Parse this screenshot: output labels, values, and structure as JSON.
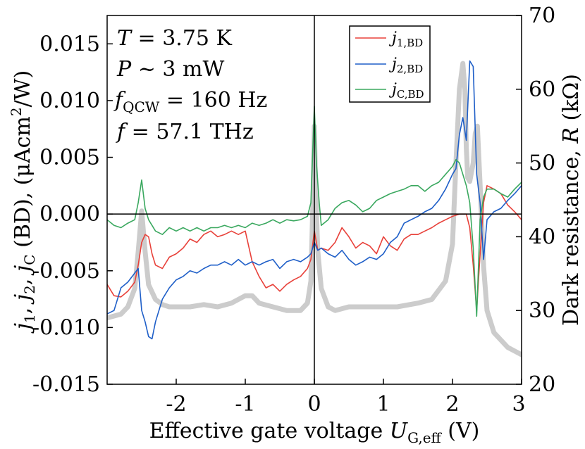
{
  "chart_data": {
    "type": "line",
    "xlabel": {
      "text": "Effective gate voltage ",
      "var": "U",
      "sub": "G,eff",
      "unit": " (V)"
    },
    "ylabel_left": {
      "j1": "j",
      "j1_sub": "1",
      "j2": "j",
      "j2_sub": "2",
      "jc": "j",
      "jc_sub": "C",
      "rest": " (BD), (μAcm",
      "sup": "2",
      "tail": "/W)"
    },
    "ylabel_right": {
      "text": "Dark resistance, ",
      "var": "R",
      "unit": " (kΩ)"
    },
    "xlim": [
      -3.0,
      3.0
    ],
    "ylim_left": [
      -0.015,
      0.0175
    ],
    "ylim_right": [
      20,
      70
    ],
    "x_ticks": [
      {
        "value": -2,
        "label": "-2"
      },
      {
        "value": -1,
        "label": "-1"
      },
      {
        "value": 0,
        "label": "0"
      },
      {
        "value": 1,
        "label": "1"
      },
      {
        "value": 2,
        "label": "2"
      },
      {
        "value": 3,
        "label": "3"
      }
    ],
    "y_left_ticks": [
      {
        "value": 0.015,
        "label": "0.015"
      },
      {
        "value": 0.01,
        "label": "0.010"
      },
      {
        "value": 0.005,
        "label": "0.005"
      },
      {
        "value": 0.0,
        "label": "0.000"
      },
      {
        "value": -0.005,
        "label": "-0.005"
      },
      {
        "value": -0.01,
        "label": "-0.010"
      },
      {
        "value": -0.015,
        "label": "-0.015"
      }
    ],
    "y_right_ticks": [
      {
        "value": 70,
        "label": "70"
      },
      {
        "value": 60,
        "label": "60"
      },
      {
        "value": 50,
        "label": "50"
      },
      {
        "value": 40,
        "label": "40"
      },
      {
        "value": 30,
        "label": "30"
      },
      {
        "value": 20,
        "label": "20"
      }
    ],
    "annotations": [
      {
        "var": "T",
        "sub": "",
        "text": " = 3.75 K"
      },
      {
        "var": "P",
        "sub": "",
        "text": " ~ 3 mW"
      },
      {
        "var": "f",
        "sub": "QCW",
        "text": " = 160 Hz"
      },
      {
        "var": "f",
        "sub": "",
        "text": " = 57.1 THz"
      }
    ],
    "legend_position": "top-right",
    "series": [
      {
        "name": "j",
        "name_sub": "1,BD",
        "color": "#e8413a",
        "axis": "left",
        "x": [
          -3.0,
          -2.9,
          -2.8,
          -2.7,
          -2.6,
          -2.55,
          -2.5,
          -2.45,
          -2.4,
          -2.35,
          -2.3,
          -2.2,
          -2.1,
          -2.0,
          -1.9,
          -1.8,
          -1.7,
          -1.6,
          -1.5,
          -1.4,
          -1.3,
          -1.2,
          -1.1,
          -1.0,
          -0.9,
          -0.8,
          -0.7,
          -0.6,
          -0.5,
          -0.4,
          -0.3,
          -0.2,
          -0.1,
          -0.05,
          0.0,
          0.05,
          0.1,
          0.2,
          0.3,
          0.4,
          0.5,
          0.6,
          0.7,
          0.8,
          0.9,
          1.0,
          1.1,
          1.2,
          1.3,
          1.4,
          1.5,
          1.6,
          1.7,
          1.8,
          1.9,
          2.0,
          2.1,
          2.2,
          2.25,
          2.3,
          2.35,
          2.4,
          2.45,
          2.5,
          2.6,
          2.7,
          2.8,
          2.9,
          3.0
        ],
        "y": [
          -0.0062,
          -0.0072,
          -0.0073,
          -0.0068,
          -0.006,
          -0.0045,
          -0.0025,
          -0.0018,
          -0.002,
          -0.0035,
          -0.0045,
          -0.0048,
          -0.0038,
          -0.0035,
          -0.003,
          -0.0022,
          -0.0025,
          -0.0018,
          -0.0015,
          -0.002,
          -0.0018,
          -0.0015,
          -0.0018,
          -0.0015,
          -0.0042,
          -0.0055,
          -0.0065,
          -0.0062,
          -0.0068,
          -0.0062,
          -0.0058,
          -0.0055,
          -0.0048,
          -0.004,
          -0.0015,
          -0.0032,
          -0.003,
          -0.0032,
          -0.0025,
          -0.0012,
          -0.002,
          -0.003,
          -0.0025,
          -0.0028,
          -0.0035,
          -0.002,
          -0.0028,
          -0.0032,
          -0.0022,
          -0.0018,
          -0.0018,
          -0.0015,
          -0.0012,
          -0.0008,
          -0.0005,
          -0.0002,
          0.0,
          0.0,
          -0.0012,
          -0.0045,
          -0.0085,
          -0.0035,
          0.001,
          0.0025,
          0.0022,
          0.0018,
          0.0008,
          0.0002,
          -0.0005
        ]
      },
      {
        "name": "j",
        "name_sub": "2,BD",
        "color": "#1f5fc8",
        "axis": "left",
        "x": [
          -3.0,
          -2.9,
          -2.8,
          -2.7,
          -2.6,
          -2.55,
          -2.5,
          -2.45,
          -2.4,
          -2.35,
          -2.3,
          -2.2,
          -2.1,
          -2.0,
          -1.9,
          -1.8,
          -1.7,
          -1.6,
          -1.5,
          -1.4,
          -1.3,
          -1.2,
          -1.1,
          -1.0,
          -0.9,
          -0.8,
          -0.7,
          -0.6,
          -0.5,
          -0.4,
          -0.3,
          -0.2,
          -0.1,
          -0.05,
          0.0,
          0.05,
          0.1,
          0.2,
          0.3,
          0.4,
          0.5,
          0.6,
          0.7,
          0.8,
          0.9,
          1.0,
          1.1,
          1.2,
          1.3,
          1.4,
          1.5,
          1.6,
          1.7,
          1.8,
          1.9,
          2.0,
          2.05,
          2.1,
          2.15,
          2.2,
          2.25,
          2.3,
          2.35,
          2.4,
          2.45,
          2.5,
          2.6,
          2.7,
          2.8,
          2.9,
          3.0
        ],
        "y": [
          -0.0088,
          -0.0085,
          -0.0065,
          -0.006,
          -0.0052,
          -0.0048,
          -0.0085,
          -0.0095,
          -0.0108,
          -0.011,
          -0.0095,
          -0.0075,
          -0.0065,
          -0.0058,
          -0.0055,
          -0.005,
          -0.0052,
          -0.0048,
          -0.0045,
          -0.0045,
          -0.0042,
          -0.0045,
          -0.004,
          -0.0045,
          -0.0042,
          -0.0045,
          -0.0042,
          -0.004,
          -0.0048,
          -0.0042,
          -0.004,
          -0.0042,
          -0.0038,
          -0.0035,
          -0.0025,
          -0.0032,
          -0.003,
          -0.0035,
          -0.0038,
          -0.0032,
          -0.004,
          -0.0045,
          -0.0042,
          -0.0038,
          -0.004,
          -0.0035,
          -0.0025,
          -0.002,
          -0.0008,
          -0.0005,
          -0.0002,
          0.0002,
          0.0005,
          0.0012,
          0.0022,
          0.0035,
          0.004,
          0.007,
          0.0085,
          0.0065,
          0.0135,
          0.013,
          0.0035,
          0.001,
          -0.004,
          -0.0005,
          0.0002,
          0.0005,
          0.0012,
          0.0018,
          0.0025
        ]
      },
      {
        "name": "j",
        "name_sub": "C,BD",
        "color": "#3aa85f",
        "axis": "left",
        "x": [
          -3.0,
          -2.9,
          -2.8,
          -2.7,
          -2.6,
          -2.55,
          -2.5,
          -2.45,
          -2.4,
          -2.3,
          -2.2,
          -2.1,
          -2.0,
          -1.9,
          -1.8,
          -1.7,
          -1.6,
          -1.5,
          -1.4,
          -1.3,
          -1.2,
          -1.1,
          -1.0,
          -0.9,
          -0.8,
          -0.7,
          -0.6,
          -0.5,
          -0.4,
          -0.3,
          -0.2,
          -0.1,
          -0.05,
          0.0,
          0.03,
          0.07,
          0.1,
          0.2,
          0.3,
          0.4,
          0.5,
          0.6,
          0.7,
          0.8,
          0.9,
          1.0,
          1.1,
          1.2,
          1.3,
          1.4,
          1.5,
          1.6,
          1.7,
          1.8,
          1.9,
          2.0,
          2.05,
          2.1,
          2.15,
          2.2,
          2.25,
          2.3,
          2.35,
          2.4,
          2.45,
          2.5,
          2.6,
          2.7,
          2.8,
          2.9,
          3.0
        ],
        "y": [
          -0.0005,
          -0.001,
          -0.0012,
          -0.0008,
          -0.0005,
          0.001,
          0.003,
          0.0005,
          -0.0005,
          -0.0015,
          -0.0018,
          -0.0012,
          -0.0015,
          -0.0012,
          -0.0015,
          -0.0012,
          -0.0015,
          -0.0012,
          -0.0012,
          -0.001,
          -0.0012,
          -0.001,
          -0.0012,
          -0.0008,
          -0.001,
          -0.0008,
          -0.0005,
          -0.0008,
          -0.0005,
          -0.0006,
          -0.0005,
          -0.0002,
          0.001,
          0.0095,
          0.0045,
          0.001,
          -0.001,
          -0.0005,
          0.0005,
          0.001,
          0.0012,
          0.0008,
          0.0002,
          0.0005,
          0.0012,
          0.0015,
          0.0018,
          0.002,
          0.0022,
          0.0025,
          0.0025,
          0.002,
          0.0025,
          0.0028,
          0.0035,
          0.0042,
          0.0048,
          0.0045,
          0.0035,
          0.0025,
          0.001,
          -0.003,
          -0.009,
          -0.0005,
          0.0015,
          0.0022,
          0.0022,
          0.0018,
          0.0015,
          0.0022,
          0.0028
        ]
      },
      {
        "name": "",
        "name_sub": "",
        "color": "#cccccc",
        "axis": "right",
        "x": [
          -3.0,
          -2.8,
          -2.7,
          -2.6,
          -2.55,
          -2.5,
          -2.45,
          -2.4,
          -2.3,
          -2.2,
          -2.1,
          -2.0,
          -1.8,
          -1.6,
          -1.4,
          -1.2,
          -1.0,
          -0.9,
          -0.8,
          -0.6,
          -0.4,
          -0.2,
          -0.1,
          -0.05,
          -0.02,
          0.0,
          0.02,
          0.05,
          0.1,
          0.2,
          0.3,
          0.5,
          0.8,
          1.0,
          1.2,
          1.5,
          1.7,
          1.9,
          2.0,
          2.05,
          2.1,
          2.15,
          2.18,
          2.2,
          2.22,
          2.25,
          2.3,
          2.33,
          2.36,
          2.4,
          2.45,
          2.5,
          2.6,
          2.7,
          2.8,
          2.9,
          3.0
        ],
        "y": [
          29.0,
          29.5,
          30.5,
          33.0,
          38.0,
          43.5,
          38.0,
          33.5,
          31.5,
          30.8,
          30.5,
          30.5,
          30.5,
          30.8,
          30.5,
          31.0,
          32.0,
          32.0,
          31.0,
          30.5,
          30.0,
          30.0,
          31.0,
          34.0,
          45.0,
          55.0,
          46.0,
          38.0,
          33.0,
          30.5,
          30.0,
          30.5,
          30.5,
          30.5,
          30.5,
          31.0,
          31.5,
          34.0,
          39.0,
          50.0,
          60.0,
          63.5,
          60.0,
          52.0,
          48.0,
          47.5,
          50.0,
          54.0,
          55.0,
          47.0,
          36.0,
          30.0,
          27.0,
          26.0,
          25.0,
          24.5,
          24.0
        ]
      }
    ]
  }
}
